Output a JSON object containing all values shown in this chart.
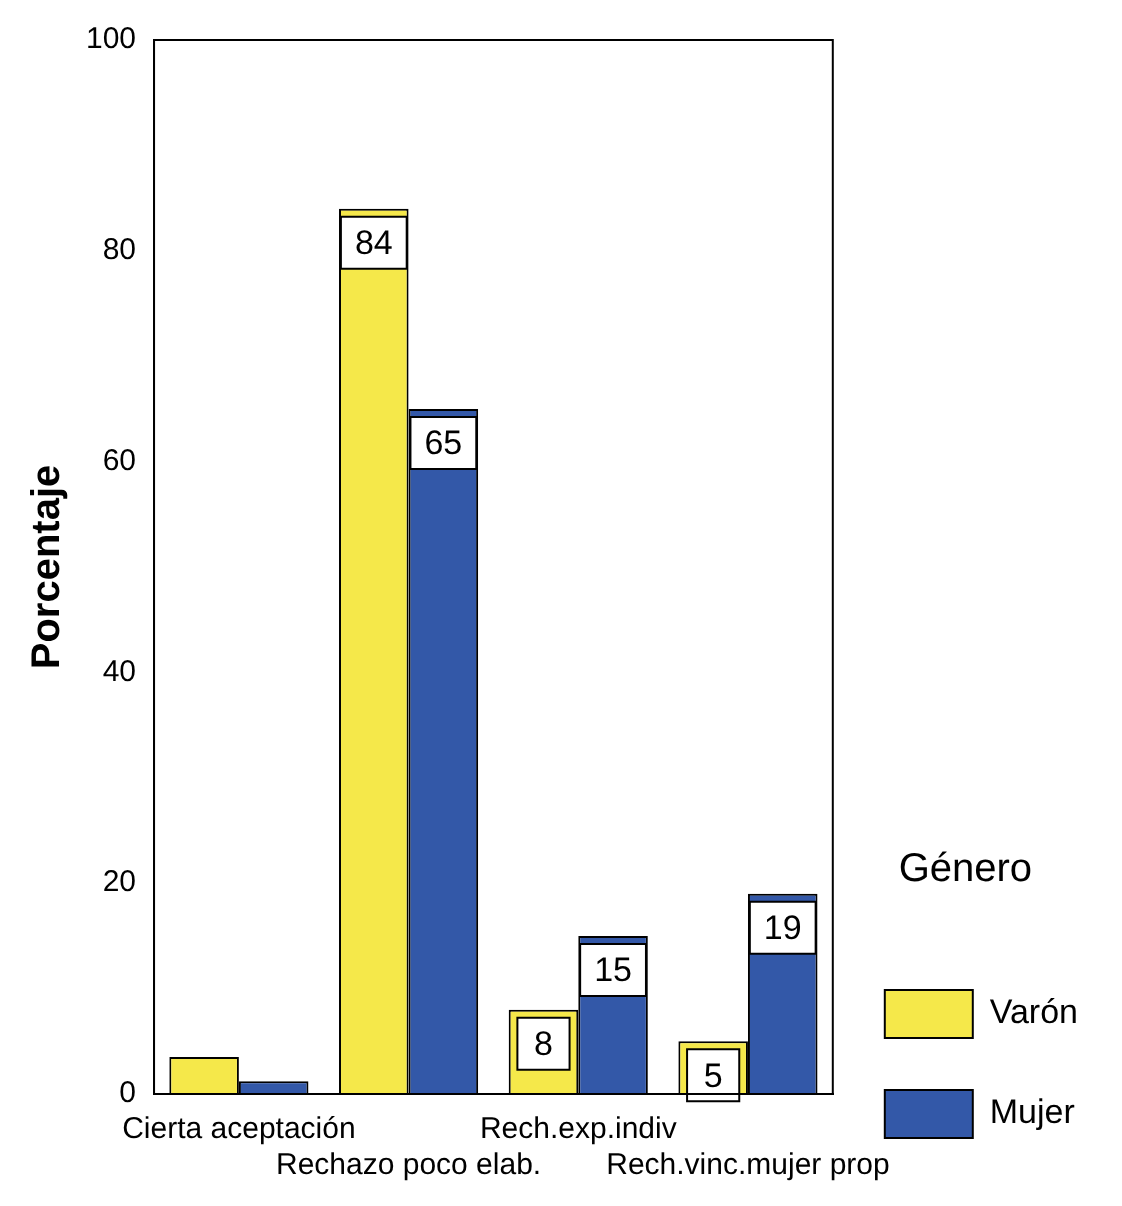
{
  "chart_data": {
    "type": "bar",
    "ylabel": "Porcentaje",
    "legend_title": "Género",
    "categories": [
      "Cierta aceptación",
      "Rechazo poco elab.",
      "Rech.exp.indiv",
      "Rech.vinc.mujer prop"
    ],
    "series": [
      {
        "name": "Varón",
        "color": "#f5e84a",
        "values": [
          3.5,
          84,
          8,
          5
        ],
        "value_labels": [
          null,
          "84",
          "8",
          "5"
        ]
      },
      {
        "name": "Mujer",
        "color": "#3358a8",
        "values": [
          1.2,
          65,
          15,
          19
        ],
        "value_labels": [
          null,
          "65",
          "15",
          "19"
        ]
      }
    ],
    "ylim": [
      0,
      100
    ],
    "yticks": [
      0,
      20,
      40,
      60,
      80,
      100
    ],
    "grid": false,
    "legend": "right"
  }
}
